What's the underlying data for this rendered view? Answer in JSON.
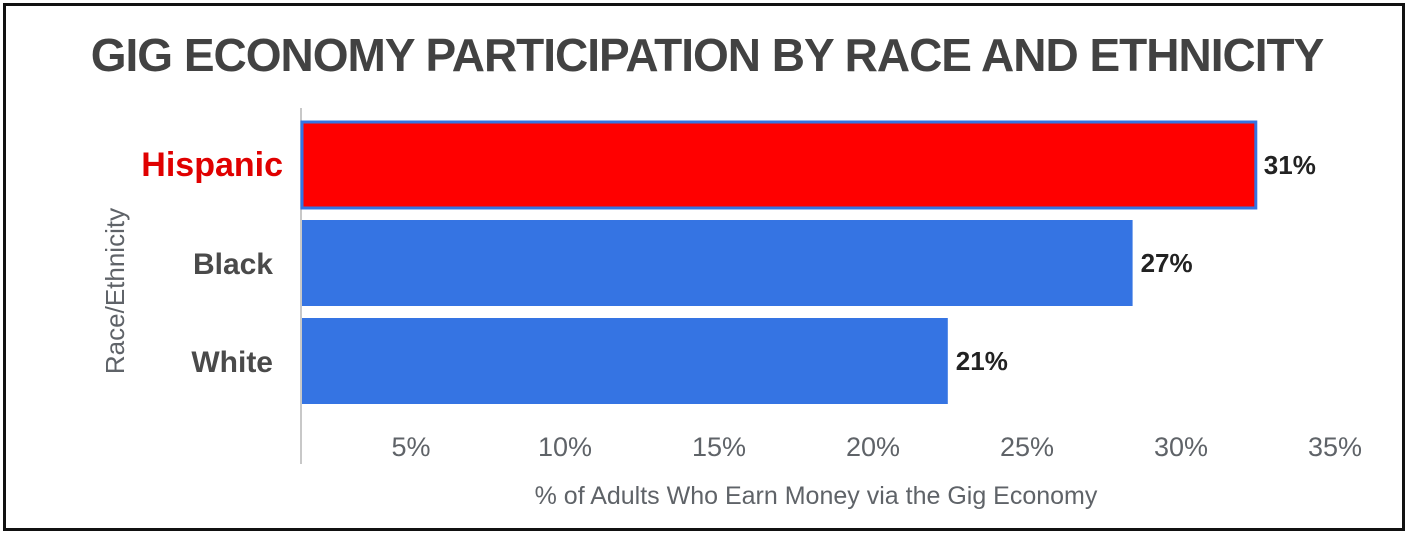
{
  "chart_data": {
    "type": "bar",
    "orientation": "horizontal",
    "title": "GIG ECONOMY PARTICIPATION BY RACE AND ETHNICITY",
    "xlabel": "% of Adults Who Earn Money via the Gig Economy",
    "ylabel": "Race/Ethnicity",
    "categories": [
      "Hispanic",
      "Black",
      "White"
    ],
    "values": [
      31,
      27,
      21
    ],
    "data_labels": [
      "31%",
      "27%",
      "21%"
    ],
    "xticks": [
      5,
      10,
      15,
      20,
      25,
      30,
      35
    ],
    "xtick_labels": [
      "5%",
      "10%",
      "15%",
      "20%",
      "25%",
      "30%",
      "35%"
    ],
    "xlim": [
      0,
      35
    ],
    "grid": false,
    "legend": "none",
    "highlight_category": "Hispanic",
    "colors": {
      "bar": "#3574e3",
      "highlight_bar": "#ff0000",
      "highlight_border": "#3574e3",
      "highlight_label": "#e00000"
    }
  }
}
